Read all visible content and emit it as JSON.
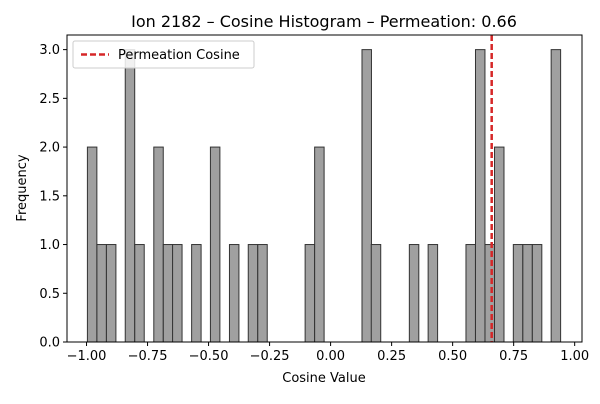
{
  "chart_data": {
    "type": "bar",
    "title": "Ion 2182 – Cosine Histogram – Permeation: 0.66",
    "xlabel": "Cosine Value",
    "ylabel": "Frequency",
    "xlim": [
      -1.08,
      1.03
    ],
    "ylim": [
      0,
      3.15
    ],
    "bin_width": 0.0388,
    "x_ticks": [
      -1.0,
      -0.75,
      -0.5,
      -0.25,
      0.0,
      0.25,
      0.5,
      0.75,
      1.0
    ],
    "x_tick_labels": [
      "−1.00",
      "−0.75",
      "−0.50",
      "−0.25",
      "0.00",
      "0.25",
      "0.50",
      "0.75",
      "1.00"
    ],
    "y_ticks": [
      0,
      0.5,
      1.0,
      1.5,
      2.0,
      2.5,
      3.0
    ],
    "y_tick_labels": [
      "0.0",
      "0.5",
      "1.0",
      "1.5",
      "2.0",
      "2.5",
      "3.0"
    ],
    "grid": false,
    "legend_position": "top-left",
    "bar_color": "#a0a0a0",
    "bar_edge_color": "#333333",
    "bins": [
      {
        "x": -0.977,
        "value": 2
      },
      {
        "x": -0.938,
        "value": 1
      },
      {
        "x": -0.899,
        "value": 1
      },
      {
        "x": -0.822,
        "value": 3
      },
      {
        "x": -0.783,
        "value": 1
      },
      {
        "x": -0.705,
        "value": 2
      },
      {
        "x": -0.666,
        "value": 1
      },
      {
        "x": -0.628,
        "value": 1
      },
      {
        "x": -0.55,
        "value": 1
      },
      {
        "x": -0.473,
        "value": 2
      },
      {
        "x": -0.395,
        "value": 1
      },
      {
        "x": -0.318,
        "value": 1
      },
      {
        "x": -0.279,
        "value": 1
      },
      {
        "x": -0.085,
        "value": 1
      },
      {
        "x": -0.046,
        "value": 2
      },
      {
        "x": 0.148,
        "value": 3
      },
      {
        "x": 0.186,
        "value": 1
      },
      {
        "x": 0.342,
        "value": 1
      },
      {
        "x": 0.419,
        "value": 1
      },
      {
        "x": 0.574,
        "value": 1
      },
      {
        "x": 0.613,
        "value": 3
      },
      {
        "x": 0.652,
        "value": 1
      },
      {
        "x": 0.691,
        "value": 2
      },
      {
        "x": 0.768,
        "value": 1
      },
      {
        "x": 0.807,
        "value": 1
      },
      {
        "x": 0.846,
        "value": 1
      },
      {
        "x": 0.923,
        "value": 3
      }
    ],
    "reference_line": {
      "name": "Permeation Cosine",
      "value": 0.66,
      "color": "#d62728",
      "style": "dashed"
    }
  }
}
